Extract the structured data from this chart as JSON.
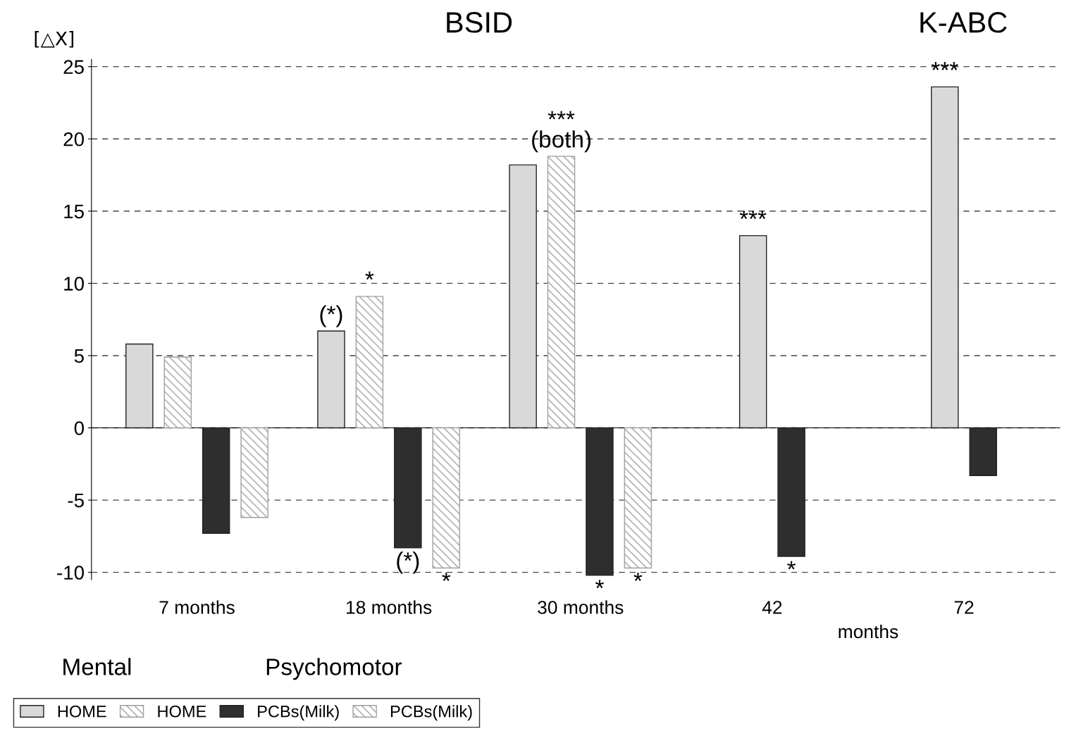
{
  "chart_data": {
    "type": "bar",
    "ylabel": "[△X]",
    "categories": [
      "7 months",
      "18 months",
      "30 months",
      "42",
      "72"
    ],
    "series": [
      {
        "name": "HOME",
        "color": "#d9d9d9",
        "values": [
          5.8,
          6.7,
          18.2,
          13.3,
          23.6
        ],
        "value_labels": [
          null,
          "(*)",
          null,
          "***",
          "***"
        ]
      },
      {
        "name": "HOME",
        "color": "#a0a0a0",
        "values": [
          4.9,
          9.1,
          18.8,
          null,
          null
        ],
        "value_labels": [
          null,
          "*",
          "***\n(both)",
          null,
          null
        ]
      },
      {
        "name": "PCBs(Milk)",
        "color": "#2e2e2e",
        "values": [
          -7.3,
          -8.3,
          -10.2,
          -8.9,
          -3.3
        ],
        "value_labels": [
          null,
          "(*)",
          "*",
          "*",
          null
        ]
      },
      {
        "name": "PCBs(Milk)",
        "color": "#a0a0a0",
        "values": [
          -6.2,
          -9.7,
          -9.7,
          null,
          null
        ],
        "value_labels": [
          null,
          "*",
          "*",
          null,
          null
        ]
      }
    ],
    "ylim": [
      -10.5,
      25.5
    ],
    "yticks": [
      -10,
      -5,
      0,
      5,
      10,
      15,
      20,
      25
    ],
    "grid": "y",
    "legend": "bottom left",
    "annotations": [
      "BSID",
      "K-ABC",
      "months",
      "Mental",
      "Psychomotor"
    ]
  }
}
